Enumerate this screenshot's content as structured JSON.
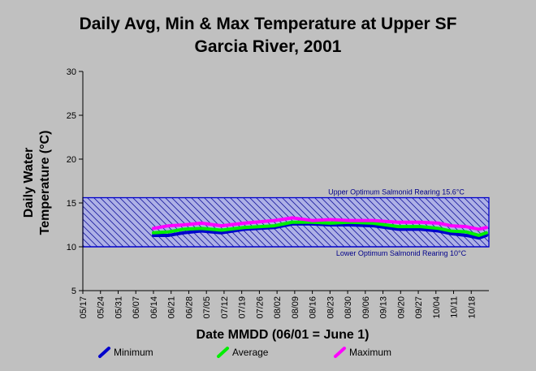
{
  "chart_data": {
    "type": "line",
    "title_line1": "Daily Avg, Min & Max Temperature at Upper SF",
    "title_line2": "Garcia River, 2001",
    "xlabel": "Date MMDD (06/01 = June 1)",
    "ylabel_line1": "Daily Water",
    "ylabel_line2": "Temperature (°C)",
    "ylim": [
      5,
      30
    ],
    "yticks": [
      "5",
      "10",
      "15",
      "20",
      "25",
      "30"
    ],
    "x_start_date": "05/17",
    "x_end_date": "10/25",
    "xticks": [
      "05/17",
      "05/24",
      "05/31",
      "06/07",
      "06/14",
      "06/21",
      "06/28",
      "07/05",
      "07/12",
      "07/19",
      "07/26",
      "08/02",
      "08/09",
      "08/16",
      "08/23",
      "08/30",
      "09/06",
      "09/13",
      "09/20",
      "09/27",
      "10/04",
      "10/11",
      "10/18"
    ],
    "band": {
      "upper": 15.6,
      "lower": 10,
      "upper_label": "Upper Optimum Salmonid Rearing 15.6°C",
      "lower_label": "Lower Optimum Salmonid Rearing 10°C",
      "fill_color": "#aeb1e6",
      "line_color": "#0000cc"
    },
    "series": [
      {
        "name": "Minimum",
        "color": "#0000cc",
        "x": [
          "06/14",
          "06/20",
          "06/26",
          "07/03",
          "07/11",
          "07/20",
          "08/01",
          "08/08",
          "08/16",
          "08/23",
          "08/31",
          "09/09",
          "09/19",
          "09/28",
          "10/05",
          "10/10",
          "10/16",
          "10/21",
          "10/24"
        ],
        "values": [
          11.3,
          11.3,
          11.6,
          11.8,
          11.6,
          12.0,
          12.2,
          12.6,
          12.6,
          12.5,
          12.5,
          12.4,
          12.0,
          12.0,
          11.8,
          11.5,
          11.3,
          11.0,
          11.3
        ]
      },
      {
        "name": "Average",
        "color": "#00ee00",
        "x": [
          "06/14",
          "06/20",
          "06/26",
          "07/03",
          "07/11",
          "07/20",
          "08/01",
          "08/08",
          "08/16",
          "08/23",
          "08/31",
          "09/09",
          "09/19",
          "09/28",
          "10/05",
          "10/10",
          "10/16",
          "10/21",
          "10/24"
        ],
        "values": [
          11.6,
          11.7,
          12.0,
          12.1,
          11.9,
          12.2,
          12.4,
          12.8,
          12.8,
          12.7,
          12.8,
          12.7,
          12.3,
          12.3,
          12.1,
          11.8,
          11.7,
          11.3,
          11.6
        ]
      },
      {
        "name": "Maximum",
        "color": "#ff00ff",
        "x": [
          "06/14",
          "06/20",
          "06/26",
          "07/03",
          "07/11",
          "07/20",
          "08/01",
          "08/08",
          "08/16",
          "08/23",
          "08/31",
          "09/09",
          "09/19",
          "09/28",
          "10/05",
          "10/10",
          "10/16",
          "10/21",
          "10/24"
        ],
        "values": [
          12.1,
          12.4,
          12.5,
          12.7,
          12.4,
          12.7,
          13.0,
          13.3,
          13.0,
          13.1,
          13.0,
          13.0,
          12.8,
          12.8,
          12.7,
          12.4,
          12.3,
          12.0,
          12.2
        ]
      }
    ],
    "grid": false,
    "legend_position": "bottom"
  }
}
